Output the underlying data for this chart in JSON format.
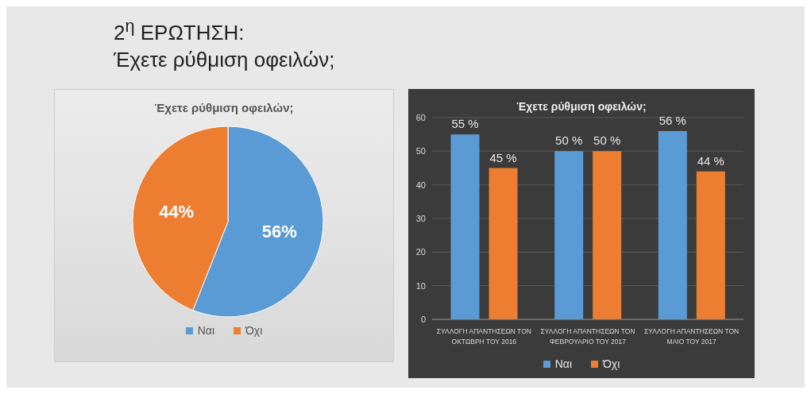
{
  "chart_data": [
    {
      "type": "other",
      "title": "2$^{η}$ ΕΡΩΤΗΣΗ:",
      "subtitle": "Έχετε ρύθμιση οφειλών;"
    },
    {
      "type": "pie",
      "title": "Έχετε ρύθμιση οφειλών;",
      "categories": [
        "Ναι",
        "Όχι"
      ],
      "values": [
        56,
        44
      ],
      "colors": [
        "#5b9bd5",
        "#ed7d31"
      ],
      "value_labels": [
        "56%",
        "44%"
      ],
      "legend": "bottom"
    },
    {
      "type": "bar",
      "title": "Έχετε ρύθμιση οφειλών;",
      "categories": [
        "ΣΥΛΛΟΓΗ ΑΠΑΝΤΗΣΕΩΝ ΤΟΝ ΟΚΤΩΒΡΗ ΤΟΥ 2016",
        "ΣΥΛΛΟΓΗ ΑΠΑΝΤΗΣΕΩΝ ΤΟΝ ΦΕΒΡΟΥΑΡΙΟ ΤΟΥ 2017",
        "ΣΥΛΛΟΓΗ ΑΠΑΝΤΗΣΕΩΝ ΤΟΝ ΜΑΙΟ ΤΟΥ 2017"
      ],
      "series": [
        {
          "name": "Ναι",
          "color": "#5b9bd5",
          "values": [
            55,
            50,
            56
          ],
          "value_labels": [
            "55 %",
            "50 %",
            "56 %"
          ]
        },
        {
          "name": "Όχι",
          "color": "#ed7d31",
          "values": [
            45,
            50,
            44
          ],
          "value_labels": [
            "45 %",
            "50 %",
            "44 %"
          ]
        }
      ],
      "ylim": [
        0,
        60
      ],
      "yticks": [
        0,
        10,
        20,
        30,
        40,
        50,
        60
      ],
      "grid": "y",
      "legend": "bottom"
    }
  ]
}
